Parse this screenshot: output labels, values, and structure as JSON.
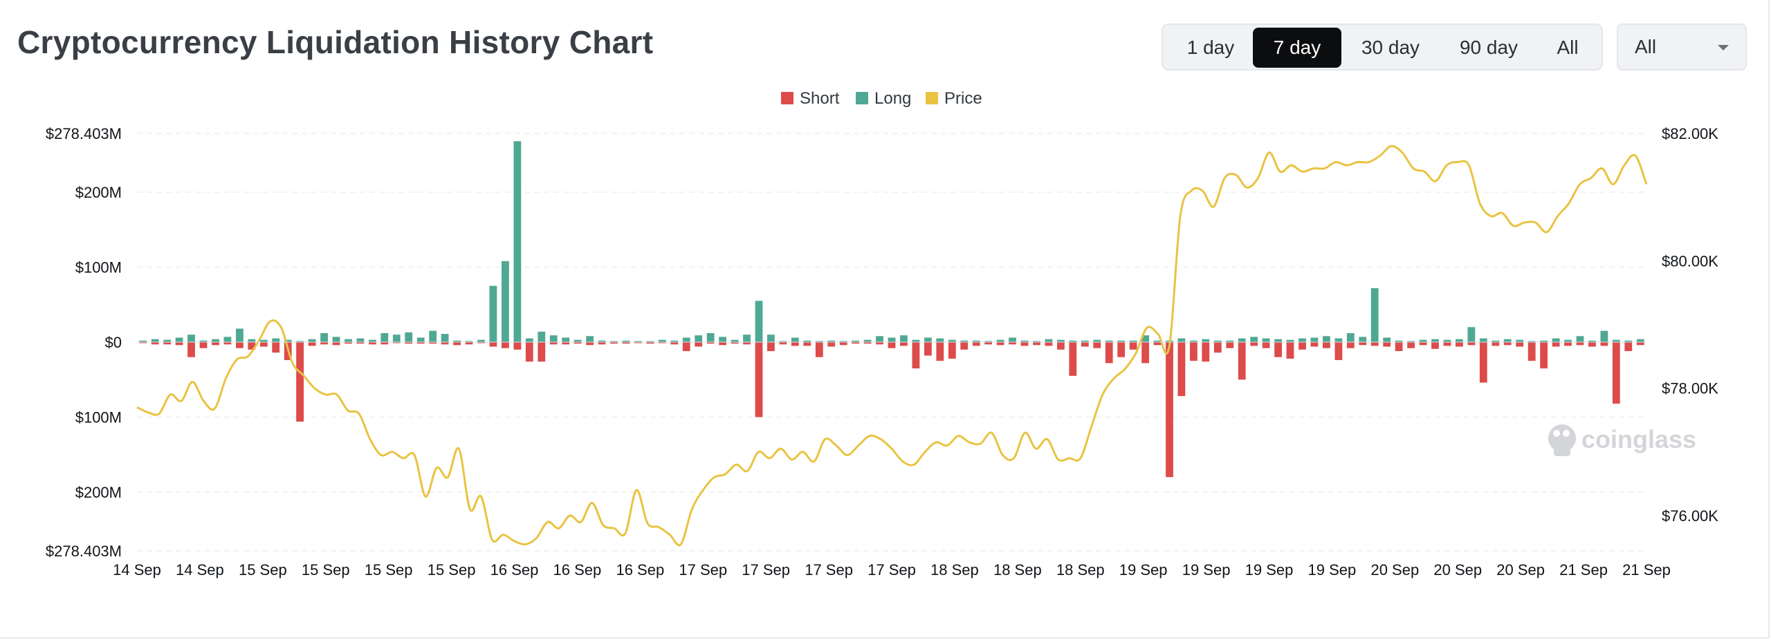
{
  "header": {
    "title": "Cryptocurrency Liquidation History Chart",
    "ranges": [
      {
        "label": "1 day",
        "active": false
      },
      {
        "label": "7 day",
        "active": true
      },
      {
        "label": "30 day",
        "active": false
      },
      {
        "label": "90 day",
        "active": false
      },
      {
        "label": "All",
        "active": false
      }
    ],
    "select_value": "All"
  },
  "watermark": "coinglass",
  "colors": {
    "short": "#dd4b4b",
    "long": "#4fa893",
    "price": "#e9c341",
    "active_bg": "#0c0d0f"
  },
  "chart_data": {
    "type": "bar",
    "legend": [
      {
        "name": "Short",
        "color": "#dd4b4b"
      },
      {
        "name": "Long",
        "color": "#4fa893"
      },
      {
        "name": "Price",
        "color": "#e9c341"
      }
    ],
    "legend_position": "top-center",
    "grid": true,
    "x_ticks": [
      "14 Sep",
      "14 Sep",
      "15 Sep",
      "15 Sep",
      "15 Sep",
      "15 Sep",
      "16 Sep",
      "16 Sep",
      "16 Sep",
      "17 Sep",
      "17 Sep",
      "17 Sep",
      "17 Sep",
      "18 Sep",
      "18 Sep",
      "18 Sep",
      "19 Sep",
      "19 Sep",
      "19 Sep",
      "19 Sep",
      "20 Sep",
      "20 Sep",
      "20 Sep",
      "21 Sep",
      "21 Sep"
    ],
    "y_left": {
      "ticks": [
        {
          "value": 278.403,
          "label": "$278.403M"
        },
        {
          "value": 200,
          "label": "$200M"
        },
        {
          "value": 100,
          "label": "$100M"
        },
        {
          "value": 0,
          "label": "$0"
        },
        {
          "value": -100,
          "label": "$100M"
        },
        {
          "value": -200,
          "label": "$200M"
        },
        {
          "value": -278.403,
          "label": "$278.403M"
        }
      ],
      "range": [
        -278.403,
        278.403
      ],
      "unit": "M USD"
    },
    "y_right": {
      "ticks": [
        {
          "value": 82000,
          "label": "$82.00K"
        },
        {
          "value": 80000,
          "label": "$80.00K"
        },
        {
          "value": 78000,
          "label": "$78.00K"
        },
        {
          "value": 76000,
          "label": "$76.00K"
        }
      ],
      "range": [
        75400,
        82000
      ]
    },
    "series": [
      {
        "name": "Long",
        "type": "bar",
        "values": [
          2,
          4,
          3,
          6,
          10,
          2,
          4,
          7,
          18,
          4,
          3,
          5,
          3,
          1,
          4,
          12,
          7,
          4,
          5,
          3,
          12,
          10,
          13,
          6,
          15,
          11,
          2,
          1,
          3,
          75,
          108,
          268,
          5,
          14,
          9,
          6,
          3,
          8,
          2,
          1,
          2,
          1,
          1,
          3,
          2,
          6,
          9,
          12,
          7,
          3,
          10,
          55,
          10,
          1,
          6,
          2,
          1,
          2,
          1,
          2,
          3,
          8,
          6,
          9,
          3,
          6,
          5,
          3,
          2,
          2,
          1,
          3,
          6,
          2,
          1,
          4,
          3,
          2,
          2,
          3,
          2,
          2,
          2,
          9,
          2,
          2,
          5,
          2,
          4,
          2,
          2,
          5,
          7,
          5,
          4,
          3,
          5,
          6,
          8,
          5,
          12,
          7,
          72,
          6,
          2,
          1,
          3,
          4,
          3,
          4,
          20,
          5,
          2,
          4,
          3,
          1,
          2,
          5,
          3,
          8,
          2,
          15,
          3,
          2,
          4
        ],
        "unit": "M USD"
      },
      {
        "name": "Short",
        "type": "bar",
        "values": [
          -1,
          -3,
          -3,
          -4,
          -20,
          -8,
          -4,
          -3,
          -8,
          -10,
          -6,
          -14,
          -24,
          -106,
          -5,
          -3,
          -4,
          -2,
          -2,
          -3,
          -3,
          -1,
          -2,
          -2,
          -2,
          -3,
          -4,
          -3,
          -1,
          -6,
          -8,
          -10,
          -26,
          -26,
          -3,
          -3,
          -2,
          -4,
          -3,
          -2,
          -2,
          -1,
          -2,
          -1,
          -3,
          -12,
          -6,
          -2,
          -4,
          -2,
          -3,
          -100,
          -12,
          -3,
          -5,
          -5,
          -20,
          -6,
          -4,
          -2,
          -2,
          -3,
          -8,
          -5,
          -35,
          -18,
          -25,
          -22,
          -10,
          -5,
          -3,
          -4,
          -3,
          -5,
          -4,
          -5,
          -10,
          -45,
          -6,
          -8,
          -28,
          -20,
          -10,
          -28,
          -4,
          -180,
          -72,
          -25,
          -26,
          -14,
          -8,
          -50,
          -5,
          -8,
          -20,
          -22,
          -10,
          -6,
          -8,
          -24,
          -8,
          -4,
          -5,
          -6,
          -12,
          -8,
          -4,
          -9,
          -5,
          -6,
          -4,
          -54,
          -5,
          -4,
          -6,
          -25,
          -35,
          -6,
          -5,
          -4,
          -6,
          -5,
          -82,
          -12,
          -4
        ],
        "unit": "M USD"
      },
      {
        "name": "Price",
        "type": "line",
        "axis": "right",
        "values": [
          77700,
          77620,
          77600,
          77900,
          77800,
          78100,
          77800,
          77680,
          78150,
          78450,
          78500,
          78750,
          79050,
          78950,
          78400,
          78200,
          78000,
          77900,
          77900,
          77650,
          77600,
          77200,
          76950,
          77000,
          76900,
          76950,
          76300,
          76750,
          76600,
          77050,
          76100,
          76300,
          75620,
          75700,
          75600,
          75550,
          75650,
          75900,
          75800,
          76000,
          75900,
          76200,
          75850,
          75800,
          75720,
          76400,
          75880,
          75820,
          75700,
          75550,
          76100,
          76400,
          76600,
          76650,
          76800,
          76700,
          77000,
          76900,
          77050,
          76880,
          77000,
          76850,
          77200,
          77100,
          76950,
          77100,
          77250,
          77200,
          77050,
          76850,
          76800,
          77000,
          77150,
          77100,
          77250,
          77150,
          77130,
          77300,
          76950,
          76900,
          77300,
          77050,
          77200,
          76880,
          76900,
          76900,
          77400,
          77900,
          78150,
          78300,
          78550,
          78950,
          78850,
          78650,
          80700,
          81100,
          81100,
          80850,
          81300,
          81350,
          81150,
          81300,
          81700,
          81400,
          81500,
          81400,
          81450,
          81450,
          81550,
          81500,
          81550,
          81550,
          81650,
          81800,
          81700,
          81450,
          81400,
          81250,
          81500,
          81550,
          81500,
          80900,
          80700,
          80750,
          80550,
          80600,
          80600,
          80450,
          80700,
          80900,
          81200,
          81300,
          81450,
          81200,
          81500,
          81650,
          81200
        ]
      }
    ]
  }
}
